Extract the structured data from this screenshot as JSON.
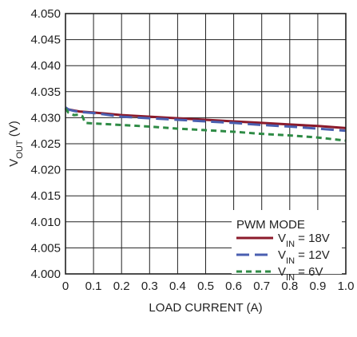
{
  "chart_data": {
    "type": "line",
    "xlabel": "LOAD CURRENT (A)",
    "ylabel": {
      "main": "V",
      "sub": "OUT",
      "unit": " (V)"
    },
    "xlim": [
      0,
      1.0
    ],
    "ylim": [
      4.0,
      4.05
    ],
    "x_ticks": [
      "0",
      "0.1",
      "0.2",
      "0.3",
      "0.4",
      "0.5",
      "0.6",
      "0.7",
      "0.8",
      "0.9",
      "1.0"
    ],
    "y_ticks": [
      "4.000",
      "4.005",
      "4.010",
      "4.015",
      "4.020",
      "4.025",
      "4.030",
      "4.035",
      "4.040",
      "4.045",
      "4.050"
    ],
    "grid": true,
    "legend": {
      "title": "PWM MODE",
      "placement": "bottom-right"
    },
    "series": [
      {
        "legend": {
          "main": "V",
          "sub": "IN",
          "rest": " = 18V"
        },
        "color": "#8b1a2b",
        "dash": "solid",
        "x": [
          0.0,
          0.01,
          0.03,
          0.05,
          0.1,
          0.2,
          0.3,
          0.4,
          0.5,
          0.6,
          0.7,
          0.8,
          0.9,
          1.0
        ],
        "y": [
          4.0318,
          4.0316,
          4.0314,
          4.0312,
          4.031,
          4.0305,
          4.0302,
          4.0299,
          4.0296,
          4.0293,
          4.029,
          4.0287,
          4.0284,
          4.028
        ]
      },
      {
        "legend": {
          "main": "V",
          "sub": "IN",
          "rest": " = 12V"
        },
        "color": "#4a5fb0",
        "dash": "long-dash",
        "x": [
          0.0,
          0.01,
          0.03,
          0.05,
          0.1,
          0.2,
          0.3,
          0.4,
          0.5,
          0.6,
          0.7,
          0.8,
          0.9,
          1.0
        ],
        "y": [
          4.032,
          4.0316,
          4.0313,
          4.0311,
          4.0309,
          4.0302,
          4.0299,
          4.0296,
          4.0293,
          4.029,
          4.0286,
          4.0283,
          4.0279,
          4.0275
        ]
      },
      {
        "legend": {
          "main": "V",
          "sub": "IN",
          "rest": " = 6V"
        },
        "color": "#2e8b45",
        "dash": "short-dash",
        "x": [
          0.0,
          0.01,
          0.03,
          0.05,
          0.06,
          0.07,
          0.1,
          0.2,
          0.3,
          0.4,
          0.5,
          0.6,
          0.7,
          0.8,
          0.9,
          1.0
        ],
        "y": [
          4.0318,
          4.031,
          4.0305,
          4.0306,
          4.0303,
          4.029,
          4.0289,
          4.0286,
          4.0283,
          4.0279,
          4.0276,
          4.0273,
          4.0269,
          4.0266,
          4.0262,
          4.0256
        ]
      }
    ]
  }
}
